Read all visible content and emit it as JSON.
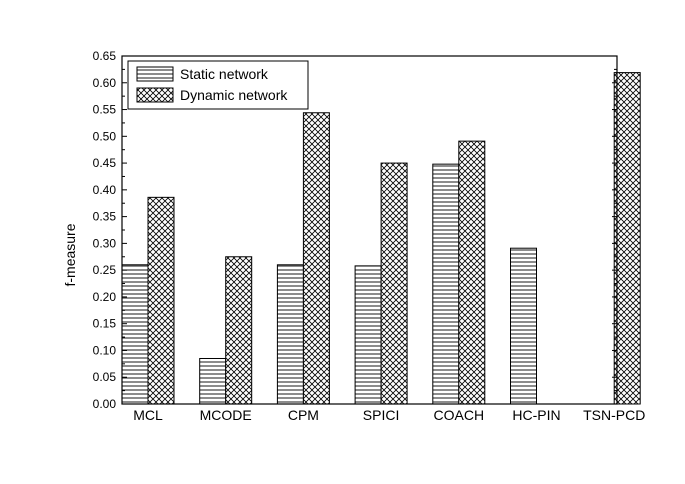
{
  "chart_data": {
    "type": "bar",
    "title": "",
    "xlabel": "",
    "ylabel": "f-measure",
    "ylim": [
      0,
      0.65
    ],
    "yticks": [
      "0.00",
      "0.05",
      "0.10",
      "0.15",
      "0.20",
      "0.25",
      "0.30",
      "0.35",
      "0.40",
      "0.45",
      "0.50",
      "0.55",
      "0.60",
      "0.65"
    ],
    "categories": [
      "MCL",
      "MCODE",
      "CPM",
      "SPICI",
      "COACH",
      "HC-PIN",
      "TSN-PCD"
    ],
    "series": [
      {
        "name": "Static network",
        "pattern": "horizontal-lines",
        "values": [
          0.26,
          0.085,
          0.26,
          0.258,
          0.448,
          0.291,
          null
        ]
      },
      {
        "name": "Dynamic network",
        "pattern": "crosshatch",
        "values": [
          0.386,
          0.275,
          0.544,
          0.45,
          0.491,
          null,
          0.619
        ]
      }
    ],
    "legend_position": "top-left",
    "grid": false
  }
}
